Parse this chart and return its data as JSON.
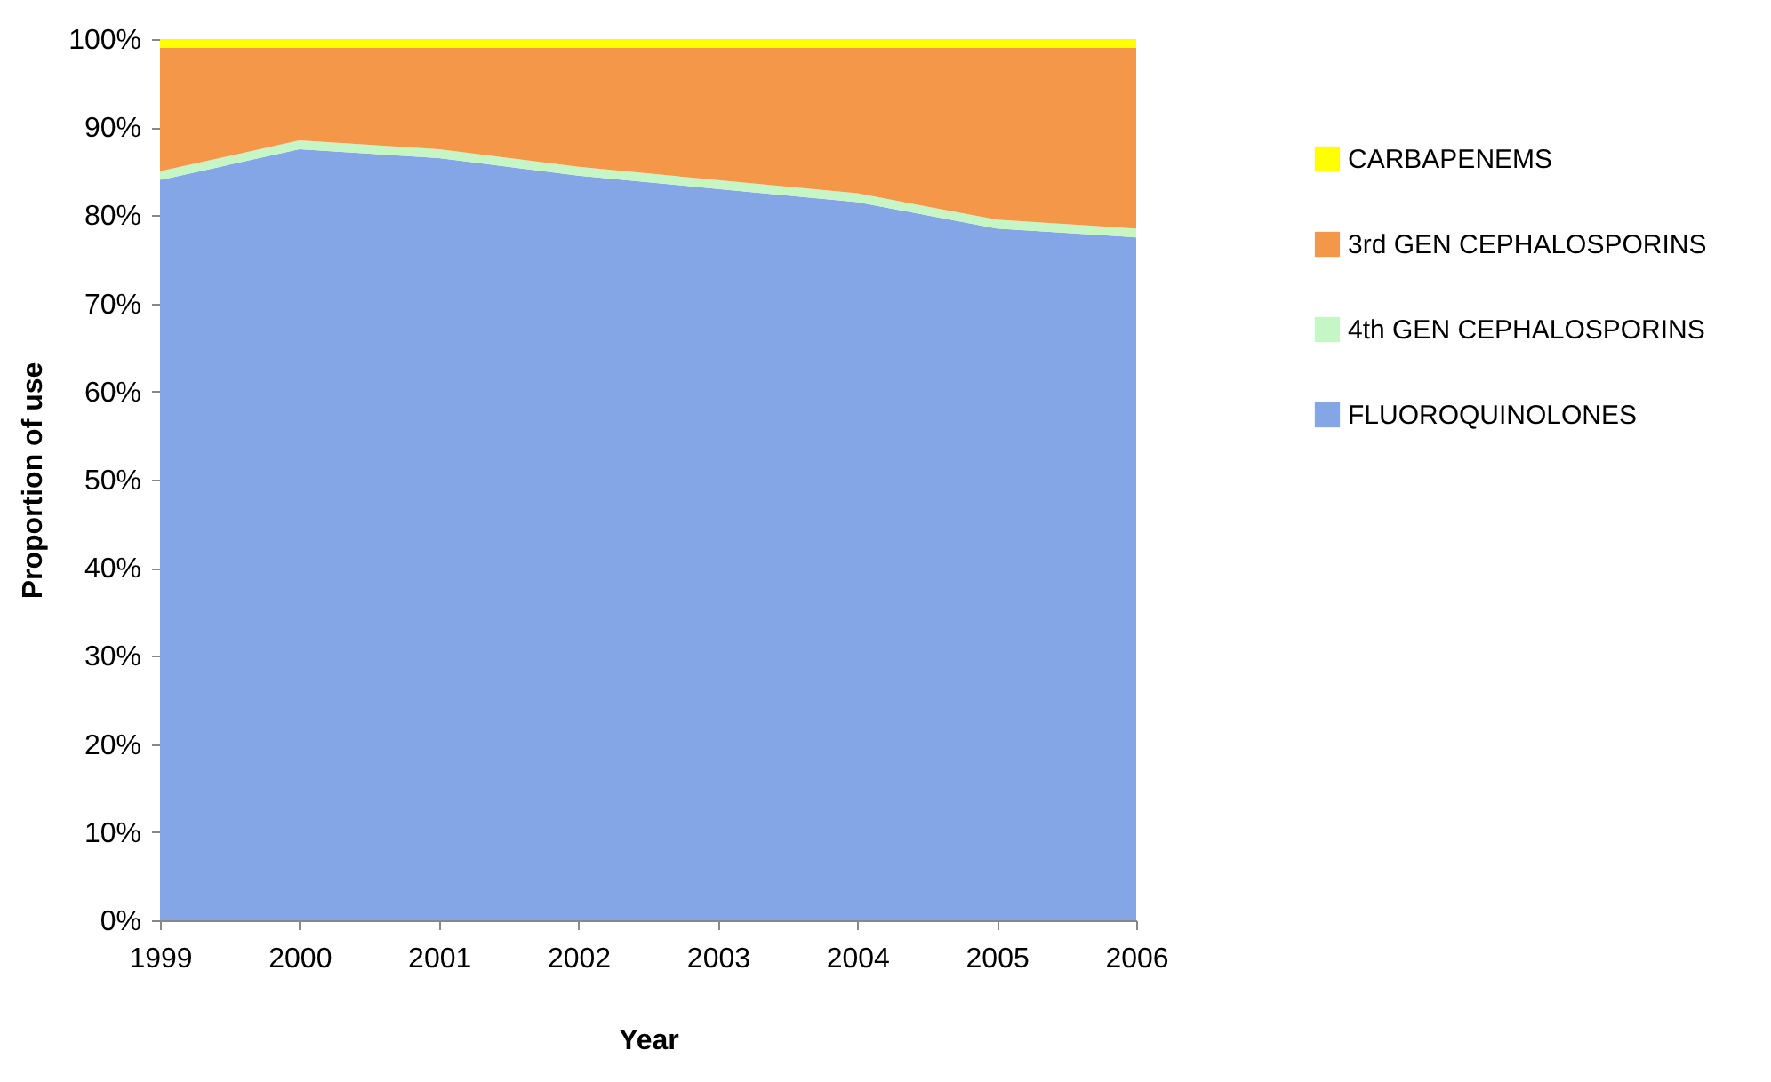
{
  "chart_data": {
    "type": "area",
    "stacked": true,
    "xlabel": "Year",
    "ylabel": "Proportion of use",
    "categories": [
      "1999",
      "2000",
      "2001",
      "2002",
      "2003",
      "2004",
      "2005",
      "2006"
    ],
    "series": [
      {
        "name": "FLUOROQUINOLONES",
        "color": "#84a6e6",
        "values": [
          84,
          87.5,
          86.5,
          84.5,
          83,
          81.5,
          78.5,
          77.5
        ]
      },
      {
        "name": "4th GEN CEPHALOSPORINS",
        "color": "#c6f5c6",
        "values": [
          1,
          1,
          1,
          1,
          1,
          1,
          1,
          1
        ]
      },
      {
        "name": "3rd GEN CEPHALOSPORINS",
        "color": "#f59749",
        "values": [
          14,
          10.5,
          11.5,
          13.5,
          15,
          16.5,
          19.5,
          20.5
        ]
      },
      {
        "name": "CARBAPENEMS",
        "color": "#ffff00",
        "values": [
          1,
          1,
          1,
          1,
          1,
          1,
          1,
          1
        ]
      }
    ],
    "ylim": [
      0,
      100
    ],
    "yticks": [
      {
        "value": 0,
        "label": "0%"
      },
      {
        "value": 10,
        "label": "10%"
      },
      {
        "value": 20,
        "label": "20%"
      },
      {
        "value": 30,
        "label": "30%"
      },
      {
        "value": 40,
        "label": "40%"
      },
      {
        "value": 50,
        "label": "50%"
      },
      {
        "value": 60,
        "label": "60%"
      },
      {
        "value": 70,
        "label": "70%"
      },
      {
        "value": 80,
        "label": "80%"
      },
      {
        "value": 90,
        "label": "90%"
      },
      {
        "value": 100,
        "label": "100%"
      }
    ],
    "grid": false,
    "legend": "right"
  }
}
